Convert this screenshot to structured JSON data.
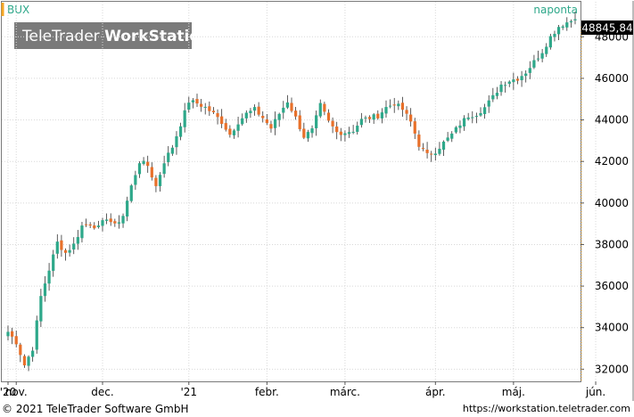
{
  "header": {
    "symbol": "BUX",
    "interval": "naponta",
    "watermark_light": "TeleTrader ",
    "watermark_bold": "WorkStation",
    "last_value": "48845,84"
  },
  "footer": {
    "copyright": "© 2021 TeleTrader Software GmbH",
    "url": "https://workstation.teletrader.com"
  },
  "colors": {
    "up": "#2ea88a",
    "down": "#e8702a",
    "grid": "#d8d8d8",
    "accent": "#f5a623",
    "interval_text": "#2ea88a",
    "badge_bg": "#000000"
  },
  "chart_data": {
    "type": "candlestick",
    "ylim": [
      31500,
      49600
    ],
    "yticks": [
      32000,
      34000,
      36000,
      38000,
      40000,
      42000,
      44000,
      46000,
      48000
    ],
    "ytick_labels": [
      "32000",
      "34000",
      "36000",
      "38000",
      "40000",
      "42000",
      "44000",
      "46000",
      "48000"
    ],
    "xaxis_labels": [
      {
        "label": "'20",
        "day": 0
      },
      {
        "label": "nov.",
        "day": 2
      },
      {
        "label": "dec.",
        "day": 23
      },
      {
        "label": "'21",
        "day": 44
      },
      {
        "label": "febr.",
        "day": 63
      },
      {
        "label": "márc.",
        "day": 82
      },
      {
        "label": "ápr.",
        "day": 104
      },
      {
        "label": "máj.",
        "day": 123
      },
      {
        "label": "jún.",
        "day": 143
      }
    ],
    "last_value": 48845.84,
    "grid": true,
    "anchors": [
      [
        0,
        33800
      ],
      [
        2,
        33300
      ],
      [
        4,
        32200
      ],
      [
        6,
        33000
      ],
      [
        8,
        35500
      ],
      [
        10,
        36800
      ],
      [
        12,
        38100
      ],
      [
        14,
        37600
      ],
      [
        16,
        38000
      ],
      [
        18,
        38900
      ],
      [
        20,
        39000
      ],
      [
        22,
        38800
      ],
      [
        24,
        39300
      ],
      [
        26,
        38900
      ],
      [
        28,
        39400
      ],
      [
        30,
        40800
      ],
      [
        32,
        42000
      ],
      [
        34,
        41800
      ],
      [
        36,
        40800
      ],
      [
        38,
        42000
      ],
      [
        40,
        42700
      ],
      [
        42,
        43800
      ],
      [
        44,
        44900
      ],
      [
        46,
        44800
      ],
      [
        48,
        44600
      ],
      [
        50,
        44300
      ],
      [
        52,
        43900
      ],
      [
        54,
        43300
      ],
      [
        56,
        43900
      ],
      [
        58,
        44300
      ],
      [
        60,
        44500
      ],
      [
        62,
        44100
      ],
      [
        64,
        43600
      ],
      [
        66,
        44300
      ],
      [
        68,
        44900
      ],
      [
        70,
        44100
      ],
      [
        72,
        43200
      ],
      [
        74,
        43500
      ],
      [
        76,
        44700
      ],
      [
        78,
        43900
      ],
      [
        80,
        43400
      ],
      [
        82,
        43400
      ],
      [
        84,
        43500
      ],
      [
        86,
        44000
      ],
      [
        88,
        44100
      ],
      [
        90,
        44200
      ],
      [
        92,
        44600
      ],
      [
        94,
        44800
      ],
      [
        96,
        44500
      ],
      [
        98,
        43900
      ],
      [
        100,
        42800
      ],
      [
        102,
        42300
      ],
      [
        104,
        42500
      ],
      [
        106,
        42900
      ],
      [
        108,
        43300
      ],
      [
        110,
        43800
      ],
      [
        112,
        44200
      ],
      [
        114,
        44300
      ],
      [
        116,
        44600
      ],
      [
        118,
        45100
      ],
      [
        120,
        45700
      ],
      [
        122,
        45900
      ],
      [
        124,
        46000
      ],
      [
        126,
        46300
      ],
      [
        128,
        46800
      ],
      [
        130,
        47300
      ],
      [
        132,
        48000
      ],
      [
        134,
        48500
      ],
      [
        136,
        48700
      ],
      [
        138,
        48845.84
      ]
    ]
  }
}
